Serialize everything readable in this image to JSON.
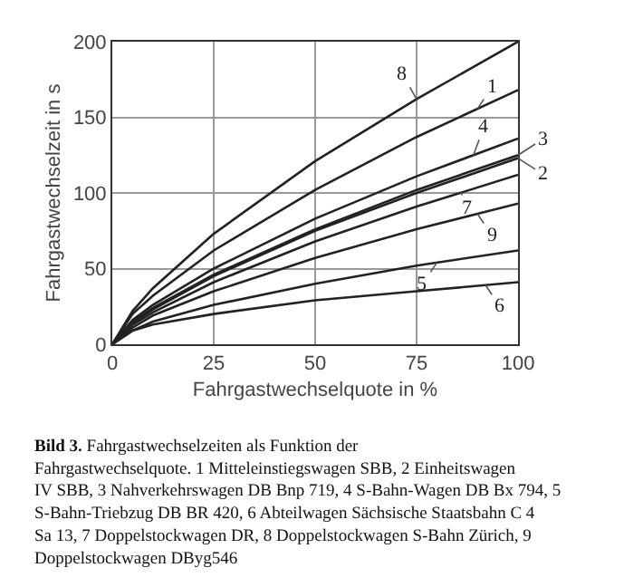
{
  "chart_data": {
    "type": "line",
    "xlabel": "Fahrgastwechselquote in %",
    "ylabel": "Fahrgastwechselzeit in s",
    "x": [
      0,
      5,
      10,
      25,
      50,
      75,
      100
    ],
    "series": [
      {
        "name": "1",
        "color": "#222222",
        "values": [
          0,
          20,
          32,
          62,
          102,
          137,
          168
        ]
      },
      {
        "name": "2",
        "color": "#222222",
        "values": [
          0,
          14,
          23,
          45,
          75,
          100,
          123
        ]
      },
      {
        "name": "3",
        "color": "#222222",
        "values": [
          0,
          15,
          24,
          46,
          76,
          102,
          125
        ]
      },
      {
        "name": "4",
        "color": "#222222",
        "values": [
          0,
          16,
          26,
          50,
          83,
          111,
          136
        ]
      },
      {
        "name": "5",
        "color": "#222222",
        "values": [
          0,
          9,
          15,
          26,
          40,
          52,
          62
        ]
      },
      {
        "name": "6",
        "color": "#222222",
        "values": [
          0,
          9,
          13,
          20,
          29,
          35,
          41
        ]
      },
      {
        "name": "7",
        "color": "#222222",
        "values": [
          0,
          13,
          21,
          41,
          68,
          91,
          112
        ]
      },
      {
        "name": "8",
        "color": "#222222",
        "values": [
          0,
          22,
          37,
          73,
          121,
          162,
          200
        ]
      },
      {
        "name": "9",
        "color": "#222222",
        "values": [
          0,
          11,
          19,
          35,
          57,
          76,
          93
        ]
      }
    ],
    "xlim": [
      0,
      100
    ],
    "xticks": [
      0,
      25,
      50,
      75,
      100
    ],
    "ylim": [
      0,
      200
    ],
    "yticks": [
      0,
      50,
      100,
      150,
      200
    ],
    "grid": true,
    "legend": false,
    "marker": "none",
    "line_style": "solid",
    "annotations": [
      "Bild 3. Fahrgastwechselzeiten als Funktion der Fahrgastwechselquote. 1 Mitteleinstiegswagen SBB, 2 Einheitswagen IV SBB, 3 Nahverkehrswagen DB Bnp 719, 4 S-Bahn-Wagen DB Bx 794, 5 S-Bahn-Triebzug DB BR 420, 6 Abteilwagen Sächsische Staatsbahn C 4 Sa 13, 7 Doppelstockwagen DR, 8 Doppelstockwagen S-Bahn Zürich, 9 Doppelstockwagen DByg546"
    ]
  }
}
